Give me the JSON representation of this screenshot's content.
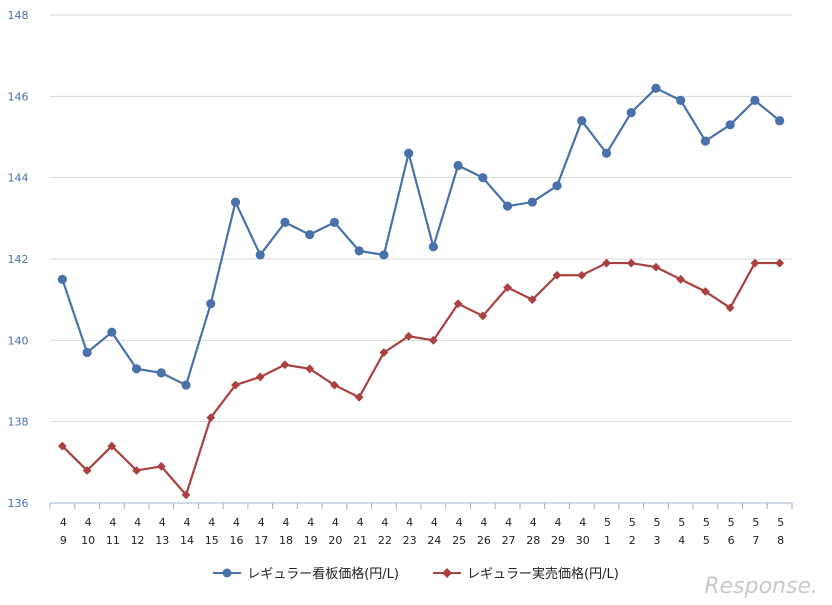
{
  "chart_data": {
    "type": "line",
    "categories": [
      [
        "4",
        "9"
      ],
      [
        "4",
        "10"
      ],
      [
        "4",
        "11"
      ],
      [
        "4",
        "12"
      ],
      [
        "4",
        "13"
      ],
      [
        "4",
        "14"
      ],
      [
        "4",
        "15"
      ],
      [
        "4",
        "16"
      ],
      [
        "4",
        "17"
      ],
      [
        "4",
        "18"
      ],
      [
        "4",
        "19"
      ],
      [
        "4",
        "20"
      ],
      [
        "4",
        "21"
      ],
      [
        "4",
        "22"
      ],
      [
        "4",
        "23"
      ],
      [
        "4",
        "24"
      ],
      [
        "4",
        "25"
      ],
      [
        "4",
        "26"
      ],
      [
        "4",
        "27"
      ],
      [
        "4",
        "28"
      ],
      [
        "4",
        "29"
      ],
      [
        "4",
        "30"
      ],
      [
        "5",
        "1"
      ],
      [
        "5",
        "2"
      ],
      [
        "5",
        "3"
      ],
      [
        "5",
        "4"
      ],
      [
        "5",
        "5"
      ],
      [
        "5",
        "6"
      ],
      [
        "5",
        "7"
      ],
      [
        "5",
        "8"
      ]
    ],
    "series": [
      {
        "name": "レギュラー看板価格(円/L)",
        "color": "#4a72aa",
        "marker": "circle",
        "values": [
          141.5,
          139.7,
          140.2,
          139.3,
          139.2,
          138.9,
          140.9,
          143.4,
          142.1,
          142.9,
          142.6,
          142.9,
          142.2,
          142.1,
          144.6,
          142.3,
          144.3,
          144.0,
          143.3,
          143.4,
          143.8,
          145.4,
          144.6,
          145.6,
          146.2,
          145.9,
          144.9,
          145.3,
          145.9,
          145.4
        ]
      },
      {
        "name": "レギュラー実売価格(円/L)",
        "color": "#aa4140",
        "marker": "diamond",
        "values": [
          137.4,
          136.8,
          137.4,
          136.8,
          136.9,
          136.2,
          138.1,
          138.9,
          139.1,
          139.4,
          139.3,
          138.9,
          138.6,
          139.7,
          140.1,
          140.0,
          140.9,
          140.6,
          141.3,
          141.0,
          141.6,
          141.6,
          141.9,
          141.9,
          141.8,
          141.5,
          141.2,
          140.8,
          141.9,
          141.9
        ]
      }
    ],
    "ylim": [
      136,
      148
    ],
    "yticks": [
      136,
      138,
      140,
      142,
      144,
      146,
      148
    ],
    "grid": true,
    "legend_position": "bottom"
  },
  "watermark": "Response."
}
